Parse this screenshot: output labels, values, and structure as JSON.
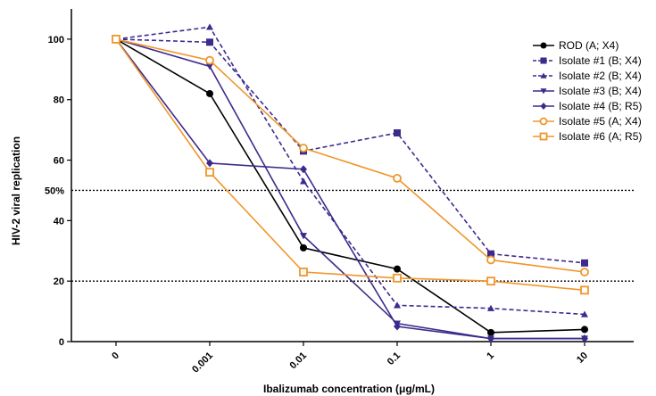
{
  "chart_data": {
    "type": "line",
    "title": "",
    "xlabel": "Ibalizumab concentration (μg/mL)",
    "ylabel": "HIV-2 viral replication",
    "categories": [
      "0",
      "0.001",
      "0.01",
      "0.1",
      "1",
      "10"
    ],
    "yticks": [
      "0",
      "20",
      "40",
      "60",
      "80",
      "100"
    ],
    "ylim": [
      0,
      110
    ],
    "reference_lines": [
      {
        "value": 50,
        "label": "50%"
      },
      {
        "value": 20,
        "label": ""
      }
    ],
    "legend_position": "top-right",
    "series": [
      {
        "name": "ROD (A; X4)",
        "values": [
          100,
          82,
          31,
          24,
          3,
          4
        ],
        "color": "#000000",
        "marker": "circle-filled",
        "dashed": false
      },
      {
        "name": "Isolate #1 (B; X4)",
        "values": [
          100,
          99,
          63,
          69,
          29,
          26
        ],
        "color": "#3d2a8c",
        "marker": "square-filled",
        "dashed": true
      },
      {
        "name": "Isolate #2 (B; X4)",
        "values": [
          100,
          104,
          53,
          12,
          11,
          9
        ],
        "color": "#3d2a8c",
        "marker": "triangle-up-filled",
        "dashed": true
      },
      {
        "name": "Isolate #3 (B; X4)",
        "values": [
          100,
          91,
          35,
          6,
          1,
          1
        ],
        "color": "#3d2a8c",
        "marker": "triangle-down-filled",
        "dashed": false
      },
      {
        "name": "Isolate #4 (B; R5)",
        "values": [
          100,
          59,
          57,
          5,
          1,
          1
        ],
        "color": "#3d2a8c",
        "marker": "diamond-filled",
        "dashed": false
      },
      {
        "name": "Isolate #5 (A; X4)",
        "values": [
          100,
          93,
          64,
          54,
          27,
          23
        ],
        "color": "#f0962a",
        "marker": "circle-open",
        "dashed": false
      },
      {
        "name": "Isolate #6 (A; R5)",
        "values": [
          100,
          56,
          23,
          21,
          20,
          17
        ],
        "color": "#f0962a",
        "marker": "square-open",
        "dashed": false
      }
    ]
  }
}
